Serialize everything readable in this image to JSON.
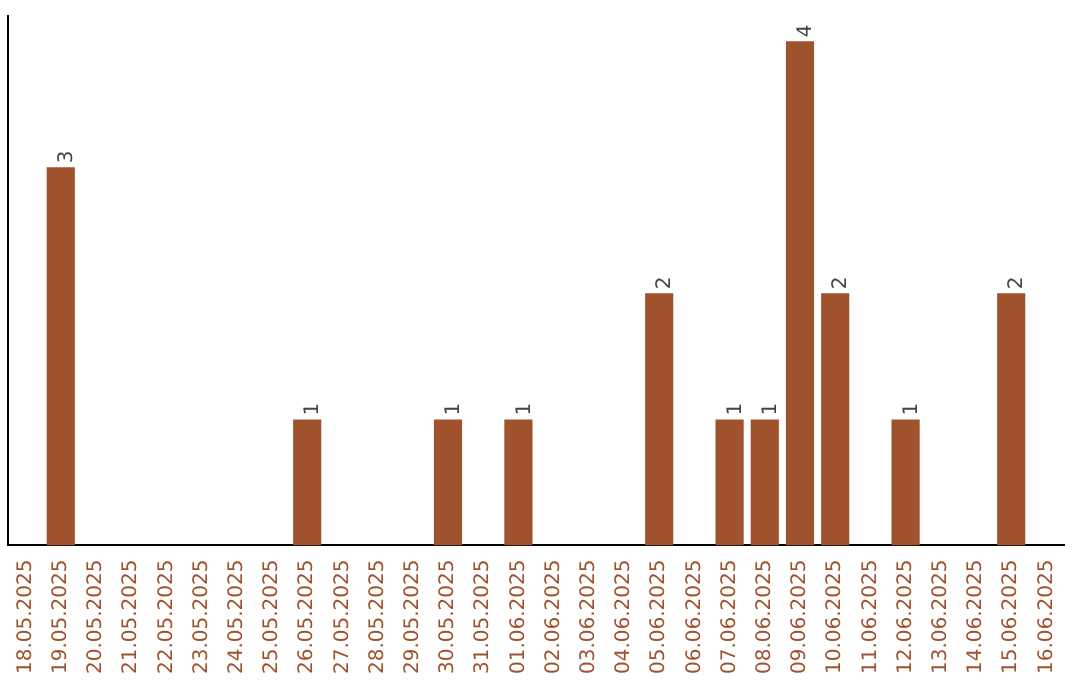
{
  "chart_data": {
    "type": "bar",
    "categories": [
      "18.05.2025",
      "19.05.2025",
      "20.05.2025",
      "21.05.2025",
      "22.05.2025",
      "23.05.2025",
      "24.05.2025",
      "25.05.2025",
      "26.05.2025",
      "27.05.2025",
      "28.05.2025",
      "29.05.2025",
      "30.05.2025",
      "31.05.2025",
      "01.06.2025",
      "02.06.2025",
      "03.06.2025",
      "04.06.2025",
      "05.06.2025",
      "06.06.2025",
      "07.06.2025",
      "08.06.2025",
      "09.06.2025",
      "10.06.2025",
      "11.06.2025",
      "12.06.2025",
      "13.06.2025",
      "14.06.2025",
      "15.06.2025",
      "16.06.2025"
    ],
    "values": [
      0,
      3,
      0,
      0,
      0,
      0,
      0,
      0,
      1,
      0,
      0,
      0,
      1,
      0,
      1,
      0,
      0,
      0,
      2,
      0,
      1,
      1,
      4,
      2,
      0,
      1,
      0,
      0,
      2,
      0
    ],
    "value_labels": [
      null,
      "3",
      null,
      null,
      null,
      null,
      null,
      null,
      "1",
      null,
      null,
      null,
      "1",
      null,
      "1",
      null,
      null,
      null,
      "2",
      null,
      "1",
      "1",
      "4",
      "2",
      null,
      "1",
      null,
      null,
      "2",
      null
    ],
    "color": "#a0522d",
    "ylim": [
      0,
      4.2
    ],
    "tick_labels": "x",
    "grid": false,
    "legend": false
  }
}
